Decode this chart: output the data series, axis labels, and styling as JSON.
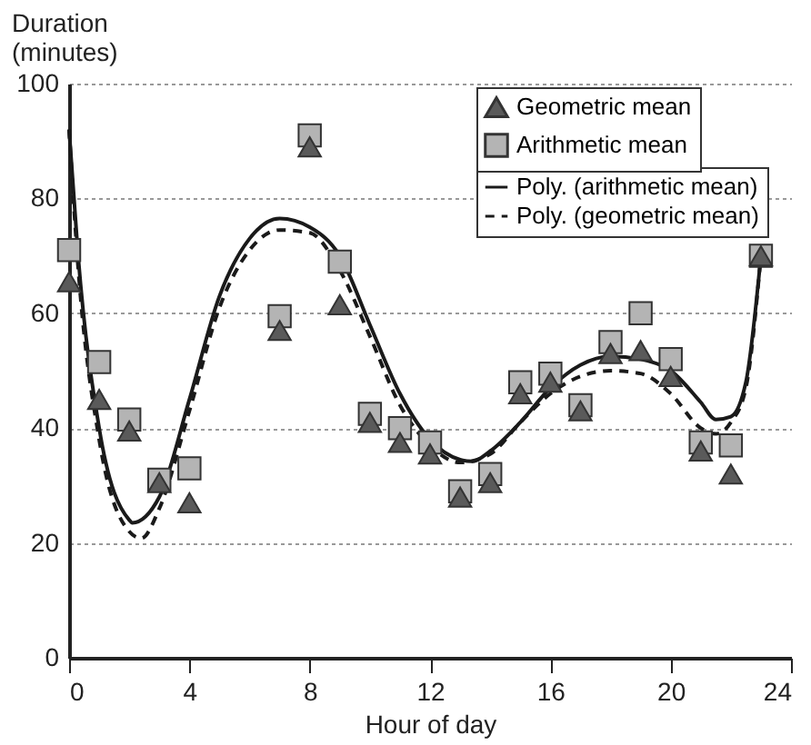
{
  "chart_data": {
    "type": "scatter",
    "xlabel": "Hour of day",
    "ylabel": "Duration\n(minutes)",
    "xlim": [
      0,
      24
    ],
    "xticks": [
      0,
      4,
      8,
      12,
      16,
      20,
      24
    ],
    "ylim": [
      0,
      100
    ],
    "yticks": [
      0,
      20,
      40,
      60,
      80,
      100
    ],
    "grid": "y",
    "legend": "top right",
    "series": [
      {
        "name": "Geometric mean",
        "marker": "triangle",
        "color": "#5a5a5a",
        "x": [
          0,
          1,
          2,
          3,
          4,
          7,
          8,
          9,
          10,
          11,
          12,
          13,
          14,
          15,
          16,
          17,
          18,
          19,
          20,
          21,
          22,
          23
        ],
        "values": [
          65.5,
          45,
          39.5,
          30.5,
          27,
          57,
          89,
          61.5,
          41,
          37.5,
          35.5,
          28,
          30.5,
          46,
          48,
          43,
          53,
          53.5,
          49,
          36,
          32,
          70
        ]
      },
      {
        "name": "Arithmetic mean",
        "marker": "square",
        "color": "#b4b4b4",
        "x": [
          0,
          1,
          2,
          3,
          4,
          7,
          8,
          9,
          10,
          11,
          12,
          13,
          14,
          15,
          16,
          17,
          18,
          19,
          20,
          21,
          22,
          23
        ],
        "values": [
          71,
          51.5,
          41.5,
          31,
          33,
          59.5,
          91,
          69,
          42.5,
          40,
          37.5,
          29,
          32,
          48,
          49.5,
          44,
          55,
          60,
          52,
          37.5,
          37,
          70
        ]
      },
      {
        "name": "Poly. (arithmetic mean)",
        "type": "line",
        "line_style": "solid",
        "color": "#1a1a1a",
        "x": [
          0,
          0.3,
          1,
          2,
          2.1,
          3,
          4,
          5,
          6,
          7,
          8,
          9,
          10,
          11,
          12,
          13,
          13.4,
          14,
          15,
          16,
          17,
          18,
          19,
          20,
          21,
          21.5,
          22,
          22.5,
          23
        ],
        "values": [
          92,
          70,
          40,
          24,
          23.5,
          28,
          45,
          63,
          73,
          76.5,
          75,
          70,
          58,
          46,
          38,
          34.5,
          34.2,
          36,
          41,
          47,
          51,
          52.5,
          52,
          50,
          44.5,
          41.5,
          42,
          48,
          70
        ]
      },
      {
        "name": "Poly. (geometric mean)",
        "type": "line",
        "line_style": "dashed",
        "color": "#1a1a1a",
        "x": [
          0,
          0.3,
          1,
          2,
          2.4,
          3,
          4,
          5,
          6,
          7,
          8,
          9,
          10,
          11,
          12,
          13,
          14,
          15,
          16,
          17,
          18,
          19,
          20,
          21,
          21.5,
          22,
          22.5,
          23
        ],
        "values": [
          92,
          68,
          38,
          22,
          20.8,
          26,
          43,
          61,
          71,
          74.5,
          74,
          67.5,
          56,
          44,
          37,
          34,
          35.5,
          41,
          46,
          49,
          50,
          49.5,
          46,
          40,
          39,
          41,
          47,
          70
        ]
      }
    ]
  }
}
